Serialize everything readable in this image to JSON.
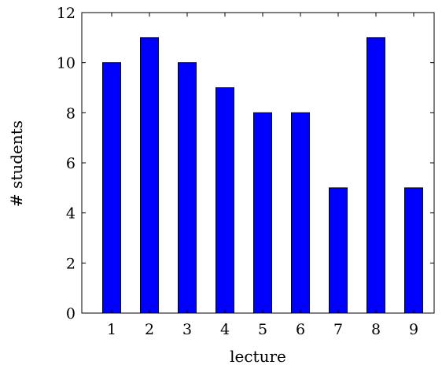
{
  "chart_data": {
    "type": "bar",
    "categories": [
      "1",
      "2",
      "3",
      "4",
      "5",
      "6",
      "7",
      "8",
      "9"
    ],
    "values": [
      10,
      11,
      10,
      9,
      8,
      8,
      5,
      11,
      5
    ],
    "xlabel": "lecture",
    "ylabel": "# students",
    "ylim": [
      0,
      12
    ],
    "yticks": [
      "0",
      "2",
      "4",
      "6",
      "8",
      "10",
      "12"
    ],
    "bar_color": "#0000ff",
    "grid": false
  }
}
